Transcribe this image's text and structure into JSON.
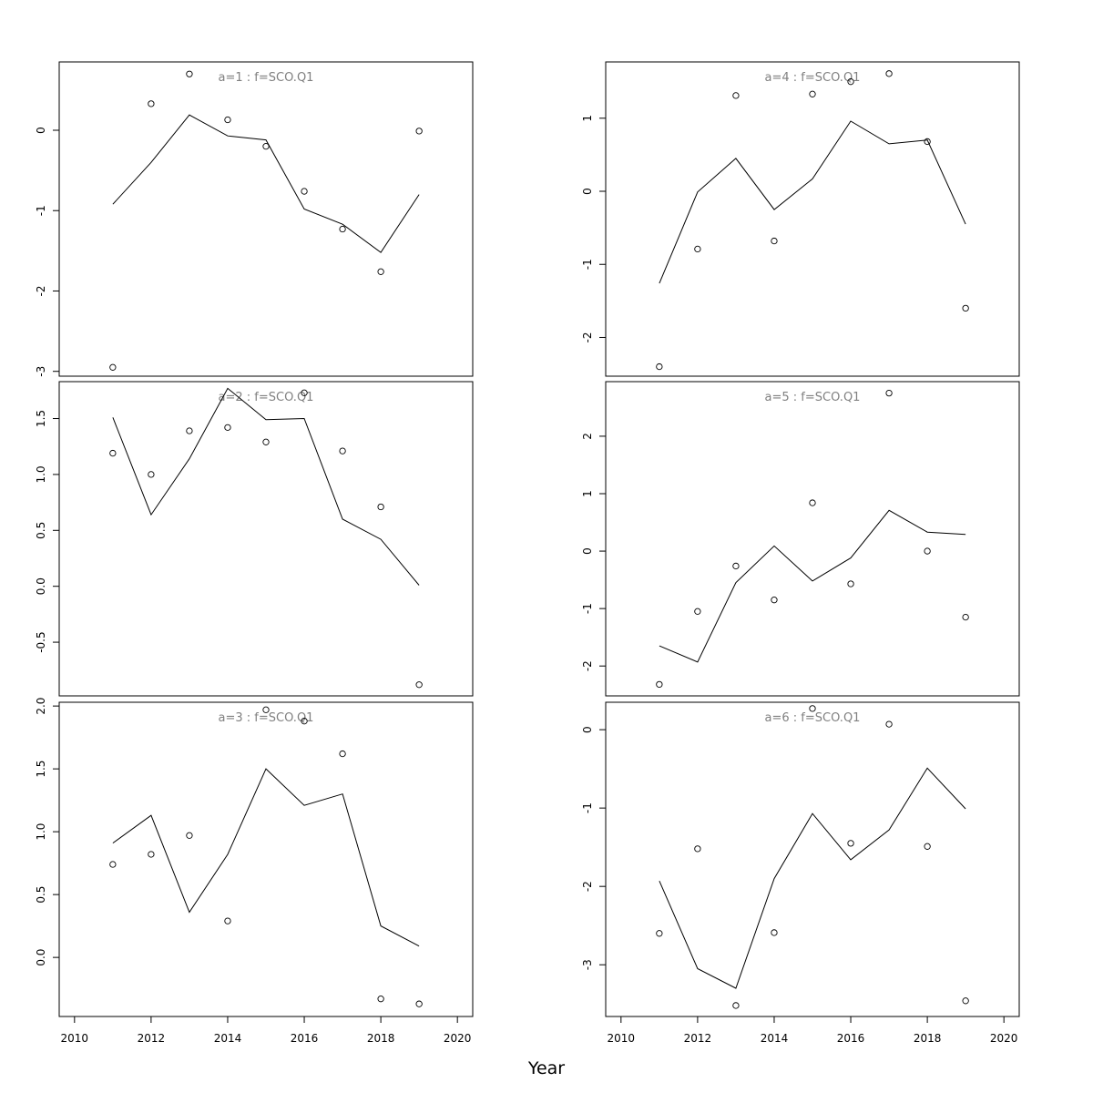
{
  "chart_data": {
    "type": "line",
    "xlabel": "Year",
    "xlim": [
      2009.6,
      2020.4
    ],
    "xticks": [
      2010,
      2012,
      2014,
      2016,
      2018,
      2020
    ],
    "line_color": "#000000",
    "point_color": "#000000",
    "title_color": "#808080",
    "panels": [
      {
        "title": "a=1 : f=SCO.Q1",
        "ylim": [
          -3.06,
          0.85
        ],
        "yticks": [
          0,
          -1,
          -2,
          -3
        ],
        "ytick_labels": [
          "0",
          "-1",
          "-2",
          "-3"
        ],
        "x": [
          2011,
          2012,
          2013,
          2014,
          2015,
          2016,
          2017,
          2018,
          2019
        ],
        "fitted": [
          -0.92,
          -0.4,
          0.19,
          -0.07,
          -0.12,
          -0.98,
          -1.17,
          -1.52,
          -0.8
        ],
        "observed": [
          -2.95,
          0.33,
          0.7,
          0.13,
          -0.2,
          -0.76,
          -1.23,
          -1.76,
          -0.01
        ]
      },
      {
        "title": "a=2 : f=SCO.Q1",
        "ylim": [
          -0.98,
          1.83
        ],
        "yticks": [
          1.5,
          1.0,
          0.5,
          0.0,
          -0.5
        ],
        "ytick_labels": [
          "1.5",
          "1.0",
          "0.5",
          "0.0",
          "-0.5"
        ],
        "x": [
          2011,
          2012,
          2013,
          2014,
          2015,
          2016,
          2017,
          2018,
          2019
        ],
        "fitted": [
          1.51,
          0.64,
          1.14,
          1.77,
          1.49,
          1.5,
          0.6,
          0.42,
          0.01
        ],
        "observed": [
          1.19,
          1.0,
          1.39,
          1.42,
          1.29,
          1.73,
          1.21,
          0.71,
          -0.88
        ]
      },
      {
        "title": "a=3 : f=SCO.Q1",
        "ylim": [
          -0.47,
          2.03
        ],
        "yticks": [
          2.0,
          1.5,
          1.0,
          0.5,
          0.0
        ],
        "ytick_labels": [
          "2.0",
          "1.5",
          "1.0",
          "0.5",
          "0.0"
        ],
        "x": [
          2011,
          2012,
          2013,
          2014,
          2015,
          2016,
          2017,
          2018,
          2019
        ],
        "fitted": [
          0.91,
          1.13,
          0.36,
          0.82,
          1.5,
          1.21,
          1.3,
          0.25,
          0.09
        ],
        "observed": [
          0.74,
          0.82,
          0.97,
          0.29,
          1.97,
          1.88,
          1.62,
          -0.33,
          -0.37
        ]
      },
      {
        "title": "a=4 : f=SCO.Q1",
        "ylim": [
          -2.53,
          1.77
        ],
        "yticks": [
          1,
          0,
          -1,
          -2
        ],
        "ytick_labels": [
          "1",
          "0",
          "-1",
          "-2"
        ],
        "x": [
          2011,
          2012,
          2013,
          2014,
          2015,
          2016,
          2017,
          2018,
          2019
        ],
        "fitted": [
          -1.26,
          -0.01,
          0.45,
          -0.25,
          0.17,
          0.96,
          0.65,
          0.7,
          -0.45
        ],
        "observed": [
          -2.4,
          -0.79,
          1.31,
          -0.68,
          1.33,
          1.5,
          1.61,
          0.68,
          -1.6
        ]
      },
      {
        "title": "a=5 : f=SCO.Q1",
        "ylim": [
          -2.52,
          2.95
        ],
        "yticks": [
          2,
          1,
          0,
          -1,
          -2
        ],
        "ytick_labels": [
          "2",
          "1",
          "0",
          "-1",
          "-2"
        ],
        "x": [
          2011,
          2012,
          2013,
          2014,
          2015,
          2016,
          2017,
          2018,
          2019
        ],
        "fitted": [
          -1.65,
          -1.93,
          -0.55,
          0.09,
          -0.52,
          -0.12,
          0.71,
          0.33,
          0.29
        ],
        "observed": [
          -2.32,
          -1.05,
          -0.26,
          -0.85,
          0.84,
          -0.57,
          2.75,
          0.0,
          -1.15
        ]
      },
      {
        "title": "a=6 : f=SCO.Q1",
        "ylim": [
          -3.66,
          0.35
        ],
        "yticks": [
          0,
          -1,
          -2,
          -3
        ],
        "ytick_labels": [
          "0",
          "-1",
          "-2",
          "-3"
        ],
        "x": [
          2011,
          2012,
          2013,
          2014,
          2015,
          2016,
          2017,
          2018,
          2019
        ],
        "fitted": [
          -1.93,
          -3.05,
          -3.3,
          -1.9,
          -1.07,
          -1.66,
          -1.28,
          -0.49,
          -1.01
        ],
        "observed": [
          -2.6,
          -1.52,
          -3.52,
          -2.59,
          0.27,
          -1.45,
          0.07,
          -1.49,
          -3.46
        ]
      }
    ]
  }
}
